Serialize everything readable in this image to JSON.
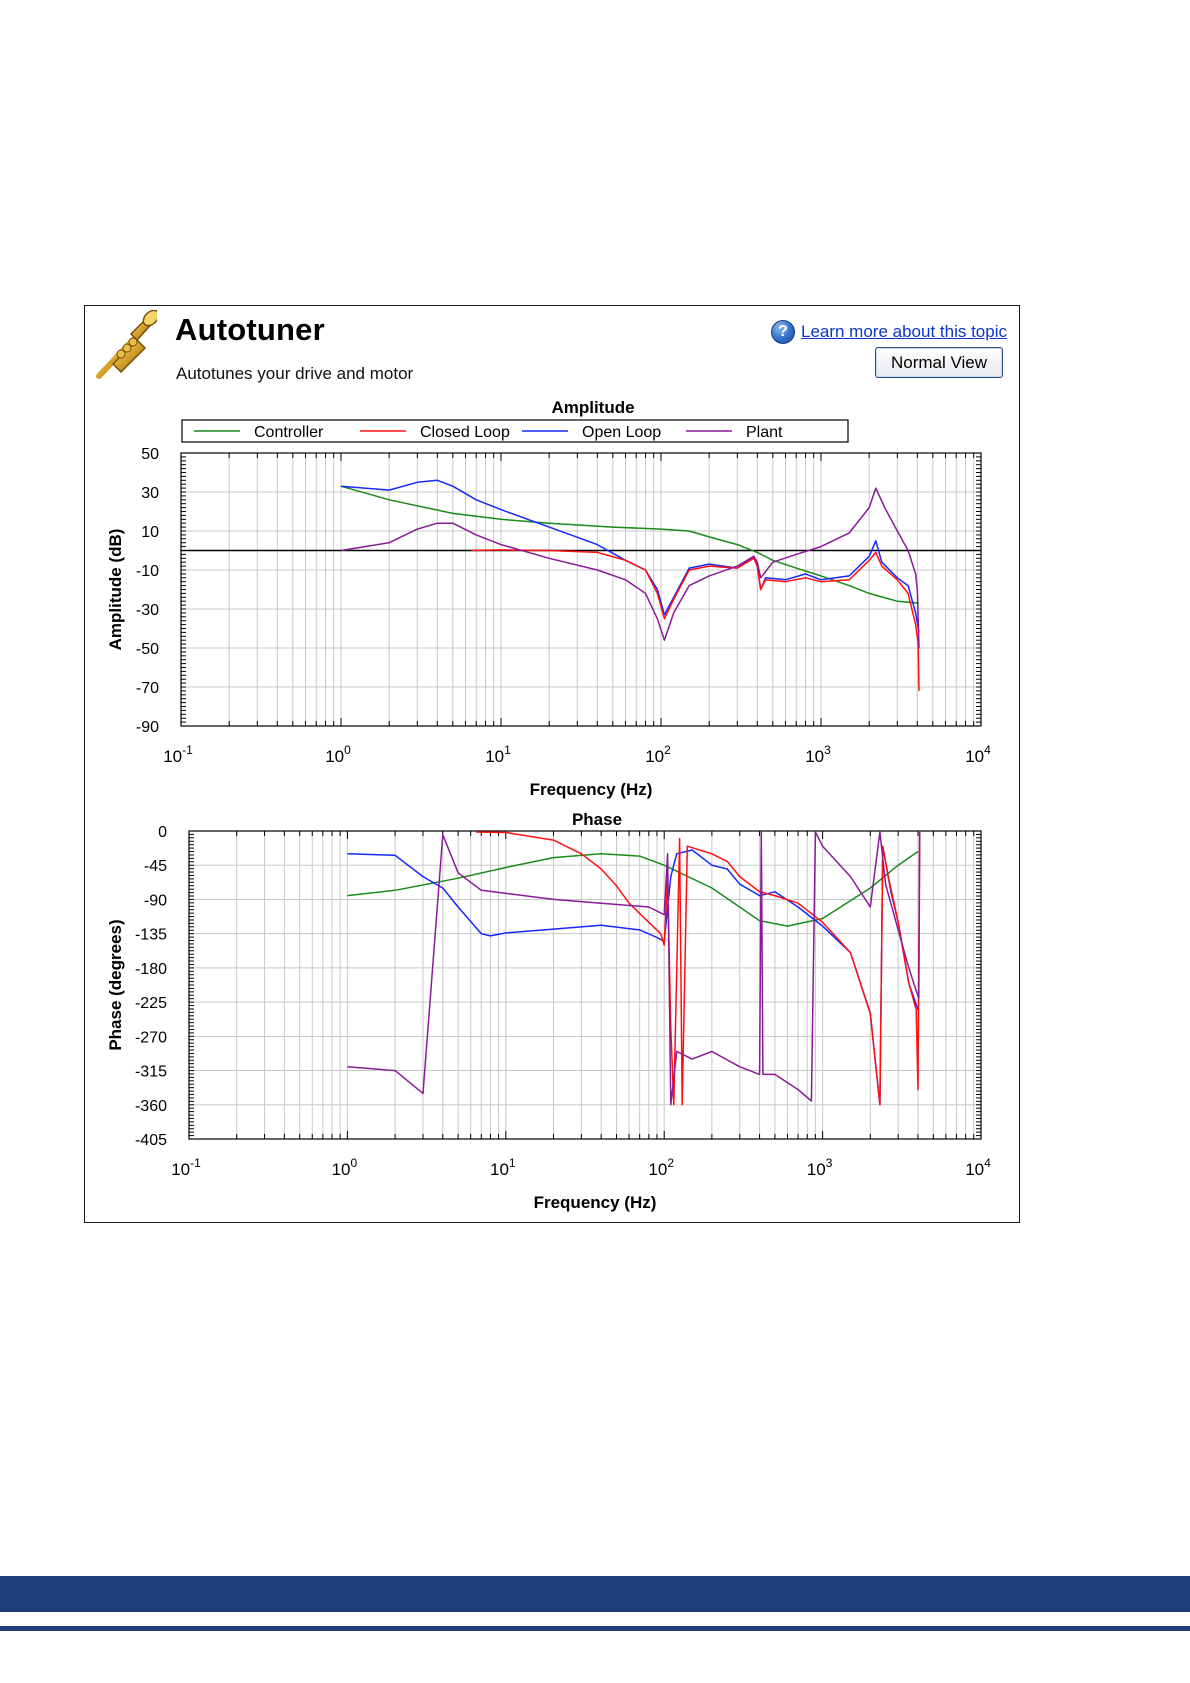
{
  "header": {
    "title": "Autotuner",
    "subtitle": "Autotunes your drive and motor",
    "help_icon": "question-mark-icon",
    "help_link": "Learn more about this topic",
    "normal_view_button": "Normal View",
    "app_icon": "trumpet-icon"
  },
  "colors": {
    "controller": "#1a8a1a",
    "closed_loop": "#ff1010",
    "open_loop": "#1428ff",
    "plant": "#8a1a9a",
    "footer": "#1e3f77"
  },
  "chart_data": [
    {
      "type": "line",
      "title": "Amplitude",
      "xlabel": "Frequency (Hz)",
      "ylabel": "Amplitude (dB)",
      "x_scale": "log",
      "xlim": [
        0.1,
        10000
      ],
      "ylim": [
        -90,
        50
      ],
      "x_ticks": [
        {
          "base": "10",
          "exp": "-1"
        },
        {
          "base": "10",
          "exp": "0"
        },
        {
          "base": "10",
          "exp": "1"
        },
        {
          "base": "10",
          "exp": "2"
        },
        {
          "base": "10",
          "exp": "3"
        },
        {
          "base": "10",
          "exp": "4"
        }
      ],
      "y_ticks": [
        "50",
        "30",
        "10",
        "-10",
        "-30",
        "-50",
        "-70",
        "-90"
      ],
      "y_tick_values": [
        50,
        30,
        10,
        -10,
        -30,
        -50,
        -70,
        -90
      ],
      "legend": [
        "Controller",
        "Closed Loop",
        "Open Loop",
        "Plant"
      ],
      "legend_position": "top",
      "grid": true,
      "reference_line_y": 0,
      "series": [
        {
          "name": "Controller",
          "points": [
            [
              1,
              33
            ],
            [
              2,
              26
            ],
            [
              5,
              19
            ],
            [
              10,
              16
            ],
            [
              20,
              14
            ],
            [
              50,
              12
            ],
            [
              100,
              11
            ],
            [
              150,
              10
            ],
            [
              200,
              7
            ],
            [
              300,
              3
            ],
            [
              400,
              -1
            ],
            [
              500,
              -5
            ],
            [
              700,
              -9
            ],
            [
              1000,
              -13
            ],
            [
              1500,
              -18
            ],
            [
              2000,
              -22
            ],
            [
              3000,
              -26
            ],
            [
              4100,
              -27
            ]
          ]
        },
        {
          "name": "Closed Loop",
          "points": [
            [
              6.5,
              0
            ],
            [
              10,
              0.3
            ],
            [
              20,
              0
            ],
            [
              40,
              -1
            ],
            [
              60,
              -5
            ],
            [
              80,
              -10
            ],
            [
              95,
              -22
            ],
            [
              105,
              -35
            ],
            [
              120,
              -25
            ],
            [
              150,
              -10
            ],
            [
              200,
              -8
            ],
            [
              300,
              -9
            ],
            [
              380,
              -4
            ],
            [
              400,
              -8
            ],
            [
              420,
              -20
            ],
            [
              450,
              -15
            ],
            [
              600,
              -16
            ],
            [
              800,
              -14
            ],
            [
              1000,
              -16
            ],
            [
              1500,
              -15
            ],
            [
              2000,
              -5
            ],
            [
              2200,
              -1
            ],
            [
              2400,
              -8
            ],
            [
              3000,
              -15
            ],
            [
              3500,
              -22
            ],
            [
              3900,
              -38
            ],
            [
              4050,
              -48
            ],
            [
              4100,
              -72
            ]
          ]
        },
        {
          "name": "Open Loop",
          "points": [
            [
              1,
              33
            ],
            [
              2,
              31
            ],
            [
              3,
              35
            ],
            [
              4,
              36
            ],
            [
              5,
              33
            ],
            [
              7,
              26
            ],
            [
              10,
              21
            ],
            [
              20,
              12
            ],
            [
              40,
              3
            ],
            [
              60,
              -5
            ],
            [
              80,
              -10
            ],
            [
              95,
              -20
            ],
            [
              105,
              -33
            ],
            [
              120,
              -24
            ],
            [
              150,
              -9
            ],
            [
              200,
              -7
            ],
            [
              300,
              -9
            ],
            [
              380,
              -3
            ],
            [
              400,
              -8
            ],
            [
              420,
              -20
            ],
            [
              450,
              -14
            ],
            [
              600,
              -15
            ],
            [
              800,
              -12
            ],
            [
              1000,
              -15
            ],
            [
              1500,
              -13
            ],
            [
              2000,
              -3
            ],
            [
              2200,
              5
            ],
            [
              2400,
              -6
            ],
            [
              3000,
              -14
            ],
            [
              3500,
              -18
            ],
            [
              3900,
              -32
            ],
            [
              4100,
              -42
            ]
          ]
        },
        {
          "name": "Plant",
          "points": [
            [
              1,
              0
            ],
            [
              2,
              4
            ],
            [
              3,
              11
            ],
            [
              4,
              14
            ],
            [
              5,
              14
            ],
            [
              7,
              8
            ],
            [
              10,
              3
            ],
            [
              20,
              -4
            ],
            [
              40,
              -10
            ],
            [
              60,
              -15
            ],
            [
              80,
              -22
            ],
            [
              95,
              -35
            ],
            [
              105,
              -46
            ],
            [
              120,
              -32
            ],
            [
              150,
              -18
            ],
            [
              200,
              -13
            ],
            [
              300,
              -8
            ],
            [
              380,
              -3
            ],
            [
              400,
              -6
            ],
            [
              420,
              -14
            ],
            [
              500,
              -6
            ],
            [
              700,
              -2
            ],
            [
              1000,
              2
            ],
            [
              1500,
              9
            ],
            [
              2000,
              22
            ],
            [
              2200,
              32
            ],
            [
              2500,
              22
            ],
            [
              3000,
              10
            ],
            [
              3500,
              0
            ],
            [
              3900,
              -12
            ],
            [
              4000,
              -20
            ],
            [
              4050,
              -35
            ],
            [
              4100,
              -50
            ]
          ]
        }
      ]
    },
    {
      "type": "line",
      "title": "Phase",
      "xlabel": "Frequency (Hz)",
      "ylabel": "Phase (degrees)",
      "x_scale": "log",
      "xlim": [
        0.1,
        10000
      ],
      "ylim": [
        -405,
        0
      ],
      "x_ticks": [
        {
          "base": "10",
          "exp": "-1"
        },
        {
          "base": "10",
          "exp": "0"
        },
        {
          "base": "10",
          "exp": "1"
        },
        {
          "base": "10",
          "exp": "2"
        },
        {
          "base": "10",
          "exp": "3"
        },
        {
          "base": "10",
          "exp": "4"
        }
      ],
      "y_ticks": [
        "0",
        "-45",
        "-90",
        "-135",
        "-180",
        "-225",
        "-270",
        "-315",
        "-360",
        "-405"
      ],
      "y_tick_values": [
        0,
        -45,
        -90,
        -135,
        -180,
        -225,
        -270,
        -315,
        -360,
        -405
      ],
      "grid": true,
      "series": [
        {
          "name": "Controller",
          "points": [
            [
              1,
              -85
            ],
            [
              2,
              -78
            ],
            [
              5,
              -62
            ],
            [
              10,
              -48
            ],
            [
              20,
              -35
            ],
            [
              40,
              -30
            ],
            [
              70,
              -33
            ],
            [
              100,
              -45
            ],
            [
              200,
              -75
            ],
            [
              400,
              -118
            ],
            [
              600,
              -125
            ],
            [
              1000,
              -115
            ],
            [
              2000,
              -75
            ],
            [
              3000,
              -45
            ],
            [
              4000,
              -27
            ]
          ]
        },
        {
          "name": "Closed Loop",
          "points": [
            [
              6.5,
              0
            ],
            [
              10,
              -2
            ],
            [
              20,
              -12
            ],
            [
              30,
              -30
            ],
            [
              40,
              -50
            ],
            [
              50,
              -72
            ],
            [
              60,
              -95
            ],
            [
              80,
              -120
            ],
            [
              95,
              -135
            ],
            [
              100,
              -150
            ],
            [
              105,
              -60
            ],
            [
              110,
              -260
            ],
            [
              115,
              -360
            ],
            [
              125,
              -10
            ],
            [
              130,
              -360
            ],
            [
              140,
              -20
            ],
            [
              200,
              -30
            ],
            [
              250,
              -40
            ],
            [
              300,
              -60
            ],
            [
              400,
              -80
            ],
            [
              500,
              -85
            ],
            [
              700,
              -95
            ],
            [
              1000,
              -120
            ],
            [
              1500,
              -160
            ],
            [
              2000,
              -240
            ],
            [
              2300,
              -360
            ],
            [
              2400,
              -20
            ],
            [
              2600,
              -60
            ],
            [
              3000,
              -120
            ],
            [
              3500,
              -200
            ],
            [
              3900,
              -235
            ],
            [
              4000,
              -340
            ],
            [
              4100,
              0
            ]
          ]
        },
        {
          "name": "Open Loop",
          "points": [
            [
              1,
              -30
            ],
            [
              2,
              -32
            ],
            [
              3,
              -60
            ],
            [
              4,
              -75
            ],
            [
              5,
              -100
            ],
            [
              7,
              -135
            ],
            [
              8,
              -138
            ],
            [
              10,
              -134
            ],
            [
              20,
              -129
            ],
            [
              40,
              -124
            ],
            [
              70,
              -130
            ],
            [
              90,
              -140
            ],
            [
              100,
              -145
            ],
            [
              110,
              -60
            ],
            [
              120,
              -30
            ],
            [
              150,
              -25
            ],
            [
              200,
              -45
            ],
            [
              250,
              -50
            ],
            [
              300,
              -70
            ],
            [
              400,
              -85
            ],
            [
              500,
              -80
            ],
            [
              700,
              -100
            ],
            [
              1000,
              -125
            ],
            [
              1500,
              -160
            ],
            [
              2000,
              -240
            ],
            [
              2300,
              -360
            ],
            [
              2400,
              -20
            ],
            [
              2700,
              -80
            ],
            [
              3000,
              -120
            ],
            [
              3500,
              -200
            ],
            [
              4000,
              -235
            ]
          ]
        },
        {
          "name": "Plant",
          "points": [
            [
              1,
              -310
            ],
            [
              2,
              -315
            ],
            [
              3,
              -345
            ],
            [
              4,
              -5
            ],
            [
              5,
              -55
            ],
            [
              7,
              -78
            ],
            [
              10,
              -82
            ],
            [
              20,
              -90
            ],
            [
              40,
              -95
            ],
            [
              80,
              -100
            ],
            [
              100,
              -110
            ],
            [
              105,
              -30
            ],
            [
              110,
              -360
            ],
            [
              120,
              -290
            ],
            [
              150,
              -300
            ],
            [
              200,
              -290
            ],
            [
              300,
              -310
            ],
            [
              400,
              -320
            ],
            [
              410,
              0
            ],
            [
              420,
              -320
            ],
            [
              500,
              -320
            ],
            [
              700,
              -340
            ],
            [
              850,
              -355
            ],
            [
              900,
              0
            ],
            [
              1000,
              -20
            ],
            [
              1500,
              -60
            ],
            [
              2000,
              -100
            ],
            [
              2300,
              0
            ],
            [
              2500,
              -70
            ],
            [
              3000,
              -130
            ],
            [
              3500,
              -180
            ],
            [
              3900,
              -210
            ],
            [
              4050,
              -220
            ],
            [
              4100,
              0
            ]
          ]
        }
      ]
    }
  ]
}
